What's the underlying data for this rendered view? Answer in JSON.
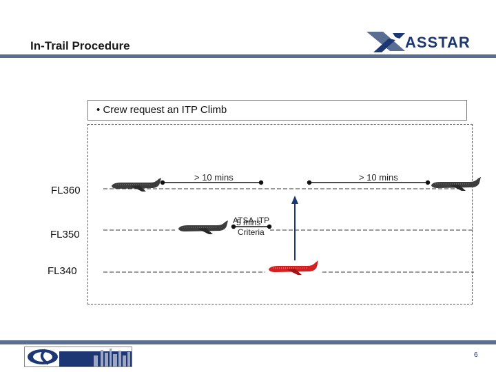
{
  "header": {
    "title": "In-Trail Procedure"
  },
  "logo": {
    "text": "ASSTAR"
  },
  "caption": {
    "bullet": "•",
    "text": "Crew request an ITP Climb"
  },
  "flight_levels": {
    "fl360": "FL360",
    "fl350": "FL350",
    "fl340": "FL340"
  },
  "separations": {
    "left": "> 10 mins",
    "right": "> 10 mins"
  },
  "criteria": {
    "line1_a": "ATSA-ITP",
    "line1_b": "5 mins",
    "line2": "Criteria"
  },
  "footer": {
    "page_number": "6"
  },
  "colors": {
    "accent": "#5a6e94",
    "climbing_aircraft": "#d42020",
    "climb_arrow": "#1d3775"
  }
}
